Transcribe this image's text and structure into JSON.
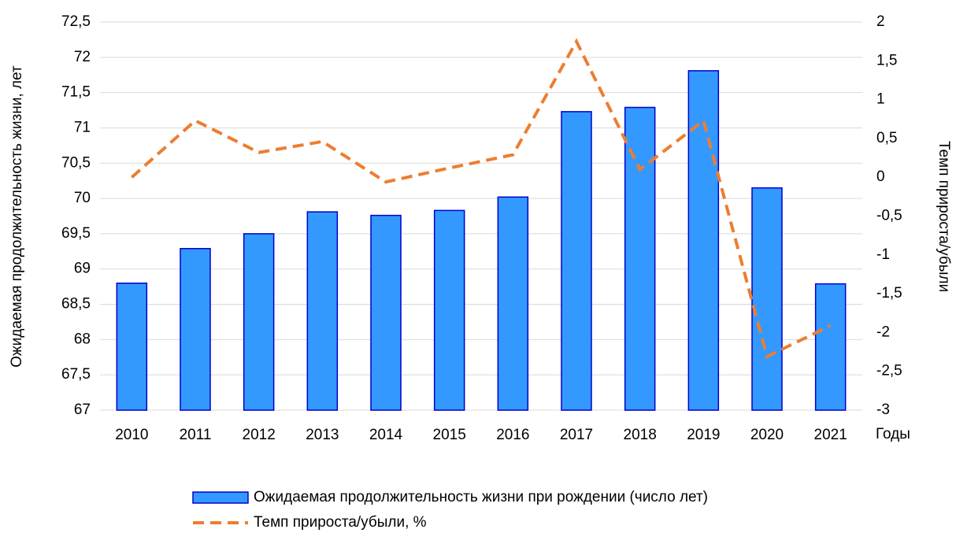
{
  "chart_data": {
    "type": "bar",
    "x_label": "Годы",
    "y_label": "Ожидаемая продолжительность жизни, лет",
    "y2_label": "Темп прироста/убыли",
    "categories": [
      "2010",
      "2011",
      "2012",
      "2013",
      "2014",
      "2015",
      "2016",
      "2017",
      "2018",
      "2019",
      "2020",
      "2021"
    ],
    "series": [
      {
        "name": "Ожидаемая продолжительность жизни при рождении (число лет)",
        "type": "bar",
        "color": "#3399ff",
        "stroke": "#0000cc",
        "values": [
          68.8,
          69.29,
          69.5,
          69.81,
          69.76,
          69.83,
          70.02,
          71.23,
          71.29,
          71.81,
          70.15,
          68.79
        ]
      },
      {
        "name": "Темп прироста/убыли, %",
        "type": "line",
        "axis": "y2",
        "color": "#ed7d31",
        "dashed": true,
        "values": [
          0,
          0.73,
          0.32,
          0.46,
          -0.06,
          0.12,
          0.29,
          1.75,
          0.1,
          0.73,
          -2.31,
          -1.91
        ]
      }
    ],
    "ylim": [
      67,
      72.5
    ],
    "yticks": [
      67,
      {
        "value": 67.5,
        "label": "67,5"
      },
      68,
      {
        "value": 68.5,
        "label": "68,5"
      },
      69,
      {
        "value": 69.5,
        "label": "69,5"
      },
      70,
      {
        "value": 70.5,
        "label": "70,5"
      },
      71,
      {
        "value": 71.5,
        "label": "71,5"
      },
      72,
      {
        "value": 72.5,
        "label": "72,5"
      }
    ],
    "y2lim": [
      -3,
      2
    ],
    "y2ticks": [
      -3,
      {
        "value": -2.5,
        "label": "-2,5"
      },
      -2,
      {
        "value": -1.5,
        "label": "-1,5"
      },
      -1,
      {
        "value": -0.5,
        "label": "-0,5"
      },
      0,
      {
        "value": 0.5,
        "label": "0,5"
      },
      1,
      {
        "value": 1.5,
        "label": "1,5"
      },
      2
    ],
    "grid": true,
    "legend": "bottom"
  }
}
